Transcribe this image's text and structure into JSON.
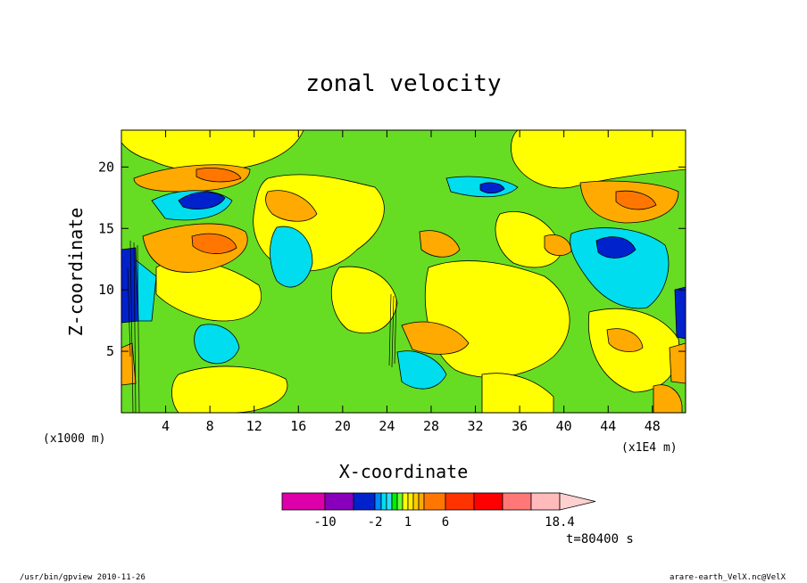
{
  "chart_data": {
    "type": "heatmap",
    "title": "zonal velocity",
    "xlabel": "X-coordinate",
    "ylabel": "Z-coordinate",
    "x_unit": "(x1E4 m)",
    "y_unit": "(x1000 m)",
    "xlim": [
      0,
      51
    ],
    "ylim": [
      0,
      23
    ],
    "x_ticks": [
      4,
      8,
      12,
      16,
      20,
      24,
      28,
      32,
      36,
      40,
      44,
      48
    ],
    "y_ticks": [
      5,
      10,
      15,
      20
    ],
    "colorbar": {
      "levels": [
        -14,
        -10,
        -6,
        -2,
        -1.5,
        -1,
        -0.5,
        0,
        0.5,
        1,
        1.5,
        2,
        4,
        6,
        8,
        10,
        12.8,
        15.6,
        18.4
      ],
      "colors": [
        "#dd00aa",
        "#8800bb",
        "#0022cc",
        "#0088ff",
        "#00ddee",
        "#33ddff",
        "#00ee00",
        "#66ff33",
        "#ffff00",
        "#ffee00",
        "#ffcc00",
        "#ffaa00",
        "#ff7700",
        "#ff3300",
        "#ff0000",
        "#ff7777",
        "#ffbbbb",
        "#ffd0d0"
      ],
      "tick_labels": [
        "-10",
        "-2",
        "1",
        "6",
        "18.4"
      ],
      "tick_values": [
        -10,
        -2,
        1,
        6,
        18.4
      ]
    },
    "time_label": "t=80400 s"
  },
  "footer": {
    "left": "/usr/bin/gpview  2010-11-26",
    "right": "arare-earth_VelX.nc@VelX"
  }
}
